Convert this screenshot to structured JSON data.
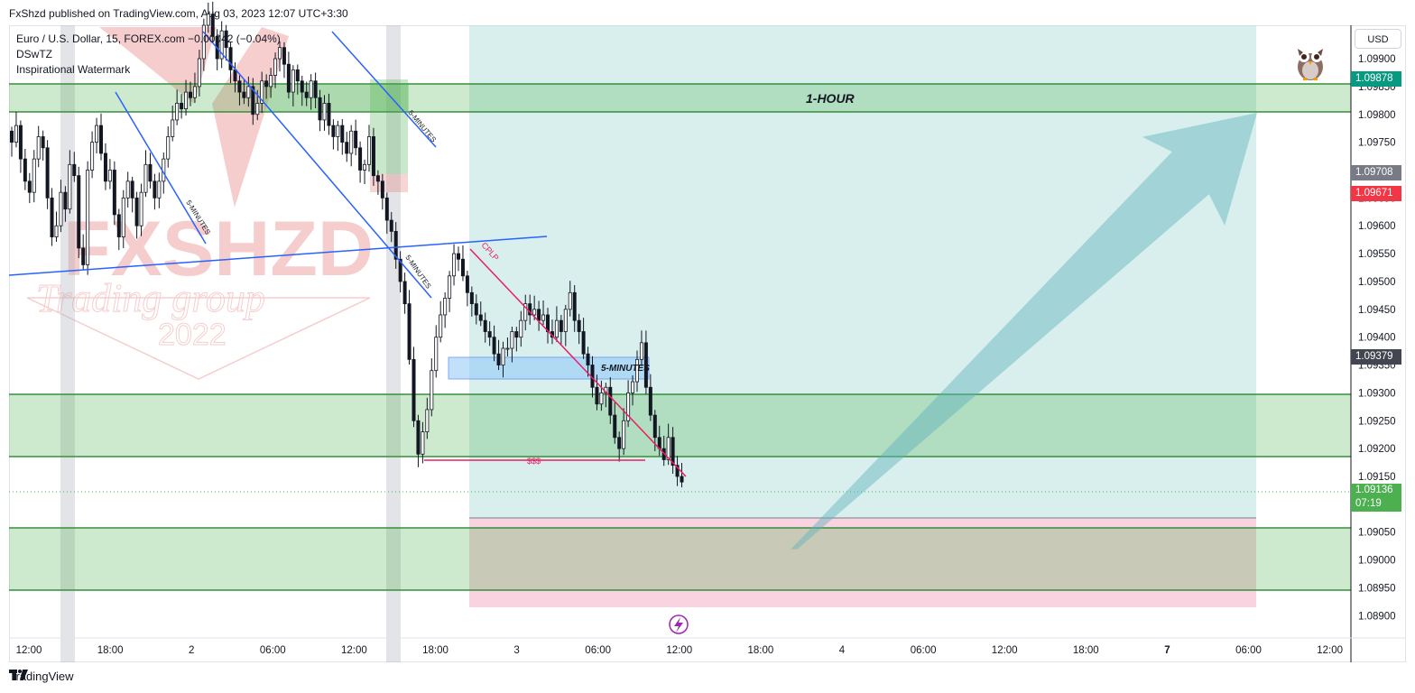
{
  "header": {
    "published_line": "FxShzd published on TradingView.com, Aug 03, 2023 12:07 UTC+3:30"
  },
  "legend": {
    "symbol_line": "Euro / U.S. Dollar, 15, FOREX.com  −0.00042 (−0.04%)",
    "indicator_1": "DSwTZ",
    "indicator_2": "Inspirational Watermark"
  },
  "currency_button": "USD",
  "price_tags": {
    "zone_top": "1.09878",
    "gray": "1.09708",
    "red": "1.09671",
    "dark": "1.09379",
    "current": "1.09136",
    "countdown": "07:19"
  },
  "annotations": {
    "one_hour": "1-HOUR",
    "five_min_1": "5-MINUTES",
    "five_min_2": "5-MINUTES",
    "five_min_3": "5-MINUTES",
    "five_min_4": "5-MINUTES",
    "cplp": "CPLP",
    "liquidity": "$$$"
  },
  "watermark": {
    "brand": "FXSHZD",
    "sub": "Trading group",
    "year": "2022"
  },
  "footer": {
    "brand": "TradingView"
  },
  "colors": {
    "up_candle": "#ffffff",
    "candle_outline": "#131722",
    "green_zone": "#4caf50",
    "trendline_blue": "#2962ff",
    "trendline_pink": "#e91e63",
    "arrow_teal": "#5fb3bd",
    "target_zone": "#b2dfdb",
    "stop_zone": "#f8bbd0"
  },
  "chart_data": {
    "type": "candlestick",
    "symbol": "Euro / U.S. Dollar",
    "interval": "15",
    "x_tick_labels": [
      "12:00",
      "18:00",
      "2",
      "06:00",
      "12:00",
      "18:00",
      "3",
      "06:00",
      "12:00",
      "18:00",
      "4",
      "06:00",
      "12:00",
      "18:00",
      "7",
      "06:00",
      "12:00"
    ],
    "y_tick_labels": [
      "1.09900",
      "1.09850",
      "1.09800",
      "1.09750",
      "1.09650",
      "1.09600",
      "1.09550",
      "1.09500",
      "1.09450",
      "1.09400",
      "1.09350",
      "1.09300",
      "1.09250",
      "1.09200",
      "1.09150",
      "1.09050",
      "1.09000",
      "1.08950",
      "1.08900"
    ],
    "ylim": [
      1.0886,
      1.0996
    ],
    "zones": [
      {
        "label": "1-HOUR",
        "from": 1.09818,
        "to": 1.09868
      },
      {
        "from": 1.092,
        "to": 1.09312
      },
      {
        "from": 1.0896,
        "to": 1.09072
      }
    ],
    "position": {
      "entry": 1.09088,
      "target": 1.0996,
      "stop": 1.0893
    },
    "close_series": [
      1.0975,
      1.0978,
      1.0972,
      1.0968,
      1.0966,
      1.0972,
      1.0976,
      1.0974,
      1.0965,
      1.0958,
      1.096,
      1.0966,
      1.0963,
      1.0971,
      1.0969,
      1.0956,
      1.0953,
      1.097,
      1.0975,
      1.0978,
      1.0973,
      1.0968,
      1.097,
      1.0962,
      1.0958,
      1.0965,
      1.0968,
      1.0965,
      1.096,
      1.0966,
      1.0971,
      1.0968,
      1.0965,
      1.0968,
      1.0972,
      1.0976,
      1.0979,
      1.0982,
      1.0981,
      1.0984,
      1.0983,
      1.0985,
      1.099,
      1.0996,
      1.0998,
      1.0994,
      1.099,
      1.0995,
      1.0992,
      1.0988,
      1.0986,
      1.0984,
      1.0983,
      1.0985,
      1.098,
      1.0982,
      1.0986,
      1.0985,
      1.0987,
      1.099,
      1.0992,
      1.0989,
      1.0984,
      1.0988,
      1.0986,
      1.0984,
      1.0983,
      1.0986,
      1.0983,
      1.0979,
      1.0982,
      1.0978,
      1.0976,
      1.0978,
      1.0975,
      1.0973,
      1.0977,
      1.0974,
      1.097,
      1.0971,
      1.0976,
      1.0969,
      1.0968,
      1.0965,
      1.0961,
      1.0959,
      1.0954,
      1.095,
      1.0946,
      1.0936,
      1.0925,
      1.0919,
      1.0923,
      1.0927,
      1.0934,
      1.094,
      1.0944,
      1.0947,
      1.0951,
      1.0955,
      1.0954,
      1.0951,
      1.0948,
      1.0946,
      1.0944,
      1.0943,
      1.0941,
      1.094,
      1.0937,
      1.0935,
      1.0938,
      1.0938,
      1.0941,
      1.094,
      1.0943,
      1.0946,
      1.0944,
      1.0945,
      1.0943,
      1.0944,
      1.0941,
      1.094,
      1.0943,
      1.0941,
      1.0945,
      1.0948,
      1.0943,
      1.0941,
      1.0937,
      1.0935,
      1.0931,
      1.0928,
      1.093,
      1.0931,
      1.0926,
      1.0922,
      1.092,
      1.0925,
      1.093,
      1.0932,
      1.0936,
      1.0939,
      1.0931,
      1.0926,
      1.0922,
      1.092,
      1.0918,
      1.0922,
      1.0917,
      1.0915,
      1.0914
    ]
  }
}
